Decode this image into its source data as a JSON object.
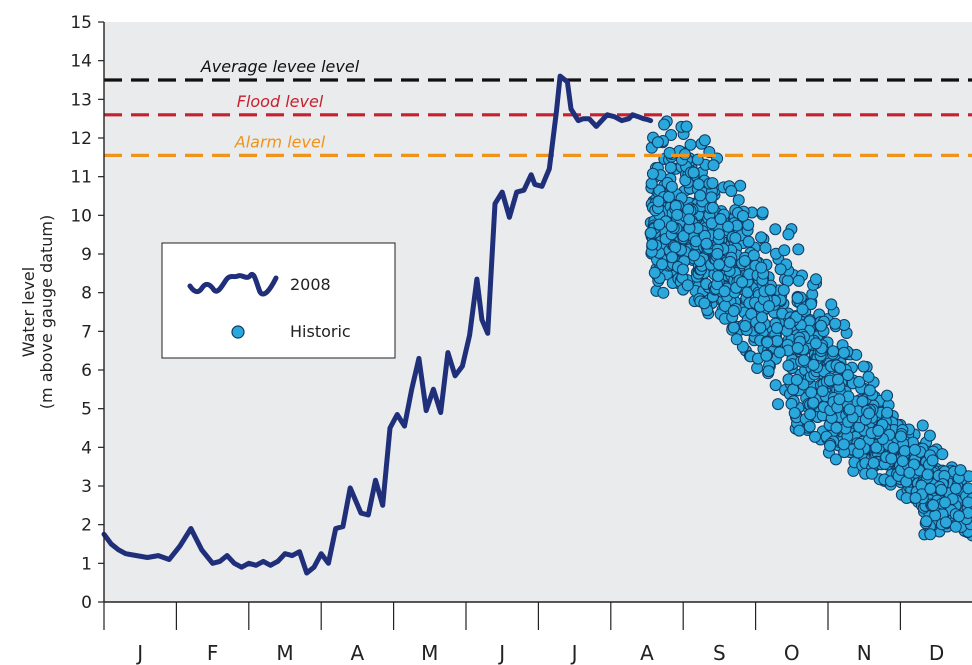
{
  "chart_data": {
    "type": "line",
    "ylabel_line1": "Water level",
    "ylabel_line2": "(m above gauge datum)",
    "ylim": [
      0,
      15
    ],
    "yticks": [
      0,
      1,
      2,
      3,
      4,
      5,
      6,
      7,
      8,
      9,
      10,
      11,
      12,
      13,
      14,
      15
    ],
    "months": [
      "J",
      "F",
      "M",
      "A",
      "M",
      "J",
      "J",
      "A",
      "S",
      "O",
      "N",
      "D"
    ],
    "grid": false,
    "legend_position": "left",
    "colors": {
      "plot_bg": "#e9ebec",
      "series_2008": "#1f2f7a",
      "historic_fill": "#2aa8dc",
      "historic_stroke": "#0f3b63",
      "average_levee": "#111111",
      "flood": "#c8202f",
      "alarm": "#f0931b"
    },
    "reference_lines": [
      {
        "id": "average-levee",
        "label": "Average levee level",
        "value": 13.5
      },
      {
        "id": "flood",
        "label": "Flood level",
        "value": 12.6
      },
      {
        "id": "alarm",
        "label": "Alarm level",
        "value": 11.55
      }
    ],
    "legend": [
      {
        "id": "2008",
        "label": "2008"
      },
      {
        "id": "historic",
        "label": "Historic"
      }
    ],
    "series_2008": {
      "name": "2008",
      "x_month_fraction": [
        0.0,
        0.1,
        0.2,
        0.3,
        0.45,
        0.6,
        0.75,
        0.9,
        1.05,
        1.2,
        1.35,
        1.5,
        1.6,
        1.7,
        1.8,
        1.9,
        2.0,
        2.1,
        2.2,
        2.3,
        2.35,
        2.4,
        2.5,
        2.6,
        2.7,
        2.8,
        2.9,
        3.0,
        3.1,
        3.2,
        3.3,
        3.4,
        3.55,
        3.65,
        3.75,
        3.85,
        3.95,
        4.05,
        4.15,
        4.25,
        4.35,
        4.45,
        4.55,
        4.65,
        4.75,
        4.85,
        4.95,
        5.05,
        5.15,
        5.22,
        5.3,
        5.4,
        5.5,
        5.6,
        5.7,
        5.8,
        5.85,
        5.9,
        5.95,
        6.05,
        6.15,
        6.25,
        6.3,
        6.4,
        6.45,
        6.55,
        6.62,
        6.7,
        6.8,
        6.85,
        6.95,
        7.05,
        7.15,
        7.25,
        7.3,
        7.38,
        7.45,
        7.5,
        7.55
      ],
      "y": [
        1.75,
        1.5,
        1.35,
        1.25,
        1.2,
        1.15,
        1.2,
        1.1,
        1.45,
        1.9,
        1.35,
        1.0,
        1.05,
        1.2,
        1.0,
        0.9,
        1.0,
        0.95,
        1.05,
        0.95,
        1.0,
        1.05,
        1.25,
        1.2,
        1.3,
        0.75,
        0.9,
        1.25,
        1.0,
        1.9,
        1.95,
        2.95,
        2.3,
        2.25,
        3.15,
        2.5,
        4.5,
        4.85,
        4.55,
        5.5,
        6.3,
        4.95,
        5.5,
        4.9,
        6.45,
        5.85,
        6.1,
        6.9,
        8.35,
        7.3,
        6.95,
        10.3,
        10.6,
        9.95,
        10.6,
        10.65,
        10.85,
        11.05,
        10.8,
        10.75,
        11.2,
        12.7,
        13.6,
        13.45,
        12.75,
        12.45,
        12.5,
        12.5,
        12.3,
        12.4,
        12.6,
        12.55,
        12.45,
        12.5,
        12.6,
        12.55,
        12.5,
        12.48,
        12.45
      ]
    },
    "historic": {
      "name": "Historic",
      "x_month_fraction_range": [
        7.55,
        12.0
      ],
      "y_range": [
        1.7,
        12.8
      ],
      "sample_points": [
        {
          "x": 7.6,
          "y": 8.4
        },
        {
          "x": 7.7,
          "y": 12.5
        },
        {
          "x": 8.0,
          "y": 12.8
        },
        {
          "x": 8.3,
          "y": 12.6
        },
        {
          "x": 8.5,
          "y": 7.8
        },
        {
          "x": 8.8,
          "y": 10.8
        },
        {
          "x": 9.0,
          "y": 9.5
        },
        {
          "x": 9.3,
          "y": 7.5
        },
        {
          "x": 9.6,
          "y": 5.8
        },
        {
          "x": 10.0,
          "y": 4.8
        },
        {
          "x": 10.3,
          "y": 6.5
        },
        {
          "x": 10.6,
          "y": 3.5
        },
        {
          "x": 11.0,
          "y": 2.8
        },
        {
          "x": 11.3,
          "y": 4.4
        },
        {
          "x": 11.6,
          "y": 4.9
        },
        {
          "x": 11.9,
          "y": 2.0
        }
      ]
    }
  }
}
